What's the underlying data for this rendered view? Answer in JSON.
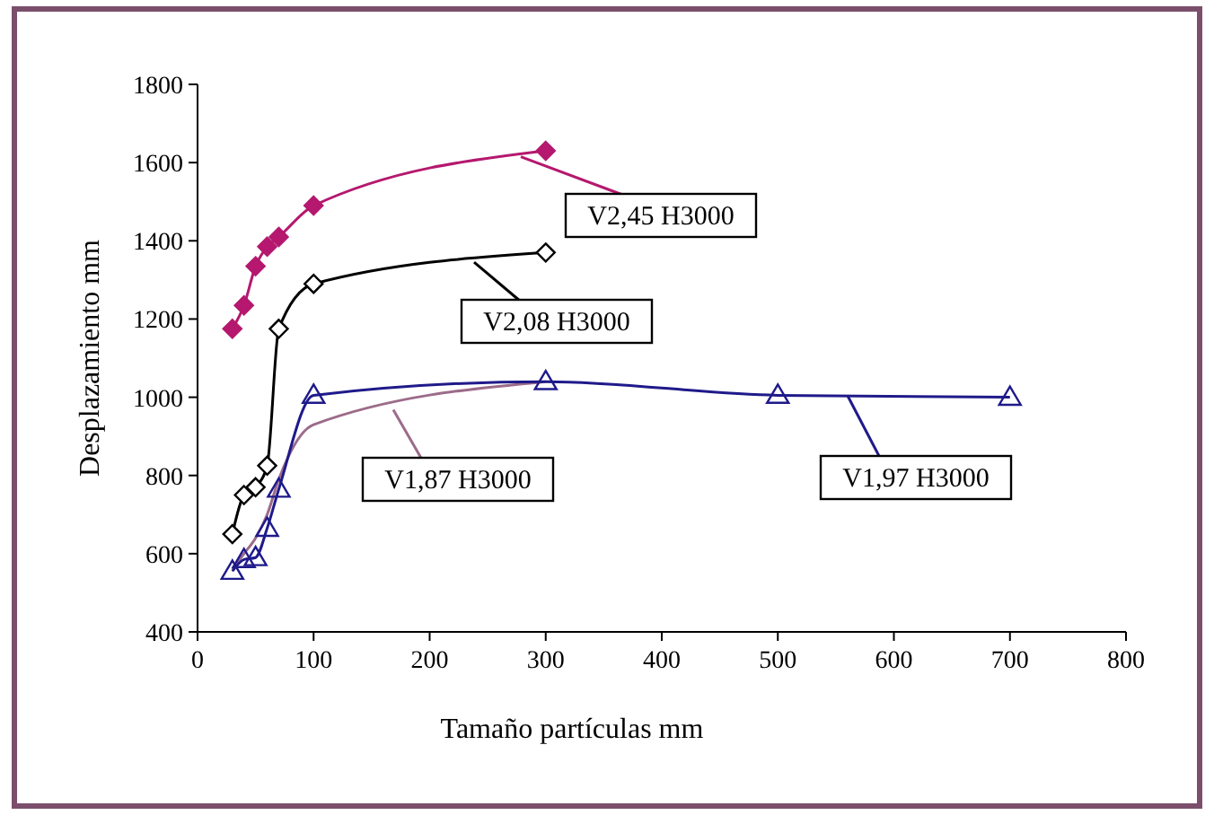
{
  "chart_data": {
    "type": "line",
    "xlabel": "Tamaño partículas mm",
    "ylabel": "Desplazamiento mm",
    "xlim": [
      0,
      800
    ],
    "ylim": [
      400,
      1800
    ],
    "xticks": [
      0,
      100,
      200,
      300,
      400,
      500,
      600,
      700,
      800
    ],
    "yticks": [
      400,
      600,
      800,
      1000,
      1200,
      1400,
      1600,
      1800
    ],
    "grid": false,
    "legend": "right",
    "series": [
      {
        "name": "V2,45 H3000",
        "color": "#b5186e",
        "marker": "diamond",
        "x": [
          30,
          40,
          50,
          60,
          70,
          100,
          300
        ],
        "values": [
          1175,
          1235,
          1335,
          1385,
          1410,
          1490,
          1630
        ]
      },
      {
        "name": "V2,08 H3000",
        "color": "#000000",
        "marker": "diamond",
        "x": [
          30,
          40,
          50,
          60,
          70,
          100,
          300
        ],
        "values": [
          650,
          750,
          770,
          825,
          1175,
          1290,
          1370
        ]
      },
      {
        "name": "V1,87 H3000",
        "color": "#9c6b8a",
        "marker": "none",
        "x": [
          30,
          40,
          50,
          60,
          70,
          100,
          300
        ],
        "values": [
          560,
          600,
          640,
          700,
          790,
          930,
          1040
        ]
      },
      {
        "name": "V1,97 H3000",
        "color": "#1f1a8a",
        "marker": "triangle",
        "x": [
          30,
          40,
          50,
          60,
          70,
          100,
          300,
          500,
          700
        ],
        "values": [
          555,
          585,
          590,
          665,
          765,
          1005,
          1040,
          1005,
          1000
        ]
      }
    ]
  }
}
